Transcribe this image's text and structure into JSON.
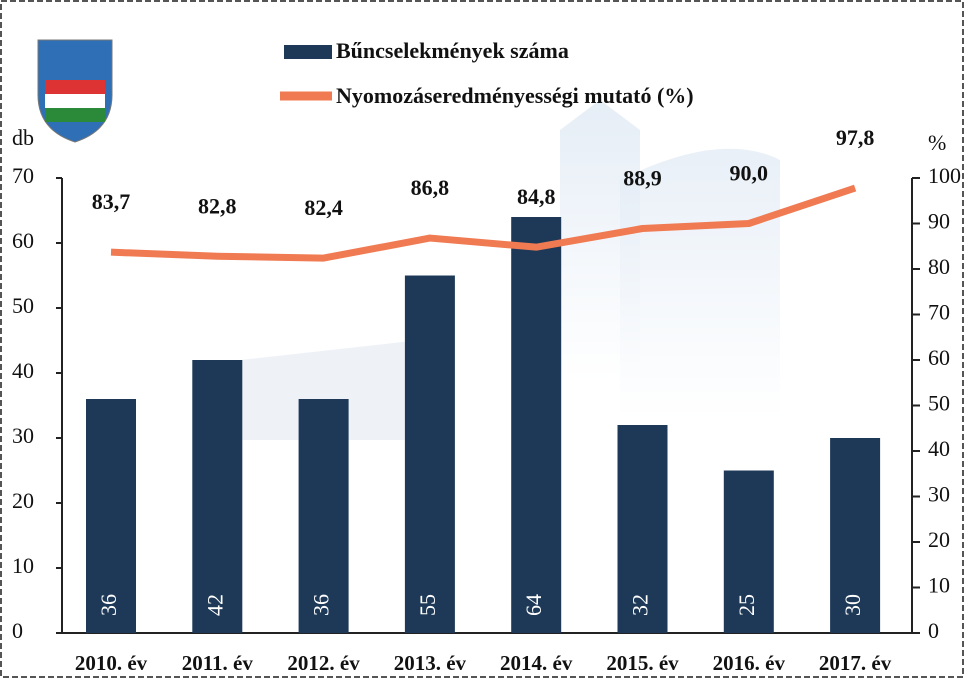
{
  "chart_data": {
    "type": "bar_line",
    "categories": [
      "2010. év",
      "2011. év",
      "2012. év",
      "2013. év",
      "2014. év",
      "2015. év",
      "2016. év",
      "2017. év"
    ],
    "series": [
      {
        "name": "Bűncselekmények száma",
        "type": "bar",
        "color": "#1d3957",
        "values": [
          36,
          42,
          36,
          55,
          64,
          32,
          25,
          30
        ]
      },
      {
        "name": "Nyomozáseredményességi mutató (%)",
        "type": "line",
        "axis": "y2",
        "color": "#f07a52",
        "values": [
          83.7,
          82.8,
          82.4,
          86.8,
          84.8,
          88.9,
          90.0,
          97.8
        ],
        "value_labels": [
          "83,7",
          "82,8",
          "82,4",
          "86,8",
          "84,8",
          "88,9",
          "90,0",
          "97,8"
        ]
      }
    ],
    "ylabel": "db",
    "y2label": "%",
    "ylim": [
      0,
      70
    ],
    "yticks": [
      0,
      10,
      20,
      30,
      40,
      50,
      60,
      70
    ],
    "y2lim": [
      0,
      100
    ],
    "y2ticks": [
      0,
      10,
      20,
      30,
      40,
      50,
      60,
      70,
      80,
      90,
      100
    ]
  }
}
